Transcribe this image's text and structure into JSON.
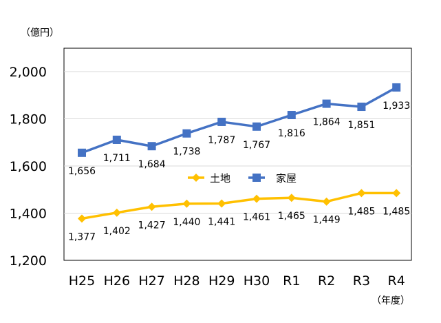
{
  "chart_data": {
    "type": "line",
    "title": "",
    "xlabel": "",
    "ylabel": "",
    "y_unit_label": "（億円）",
    "x_unit_label": "（年度）",
    "categories": [
      "H25",
      "H26",
      "H27",
      "H28",
      "H29",
      "H30",
      "R1",
      "R2",
      "R3",
      "R4"
    ],
    "ylim": [
      1200,
      2000
    ],
    "yticks": [
      1200,
      1400,
      1600,
      1800,
      2000
    ],
    "ytick_labels": [
      "1,200",
      "1,400",
      "1,600",
      "1,800",
      "2,000"
    ],
    "grid": true,
    "legend_position": "center-right",
    "series": [
      {
        "name": "土地",
        "color": "#FFC000",
        "marker": "diamond",
        "values": [
          1377,
          1402,
          1427,
          1440,
          1441,
          1461,
          1465,
          1449,
          1485,
          1485
        ],
        "labels": [
          "1,377",
          "1,402",
          "1,427",
          "1,440",
          "1,441",
          "1,461",
          "1,465",
          "1,449",
          "1,485",
          "1,485"
        ]
      },
      {
        "name": "家屋",
        "color": "#4472C4",
        "marker": "square",
        "values": [
          1656,
          1711,
          1684,
          1738,
          1787,
          1767,
          1816,
          1864,
          1851,
          1933
        ],
        "labels": [
          "1,656",
          "1,711",
          "1,684",
          "1,738",
          "1,787",
          "1,767",
          "1,816",
          "1,864",
          "1,851",
          "1,933"
        ]
      }
    ]
  }
}
